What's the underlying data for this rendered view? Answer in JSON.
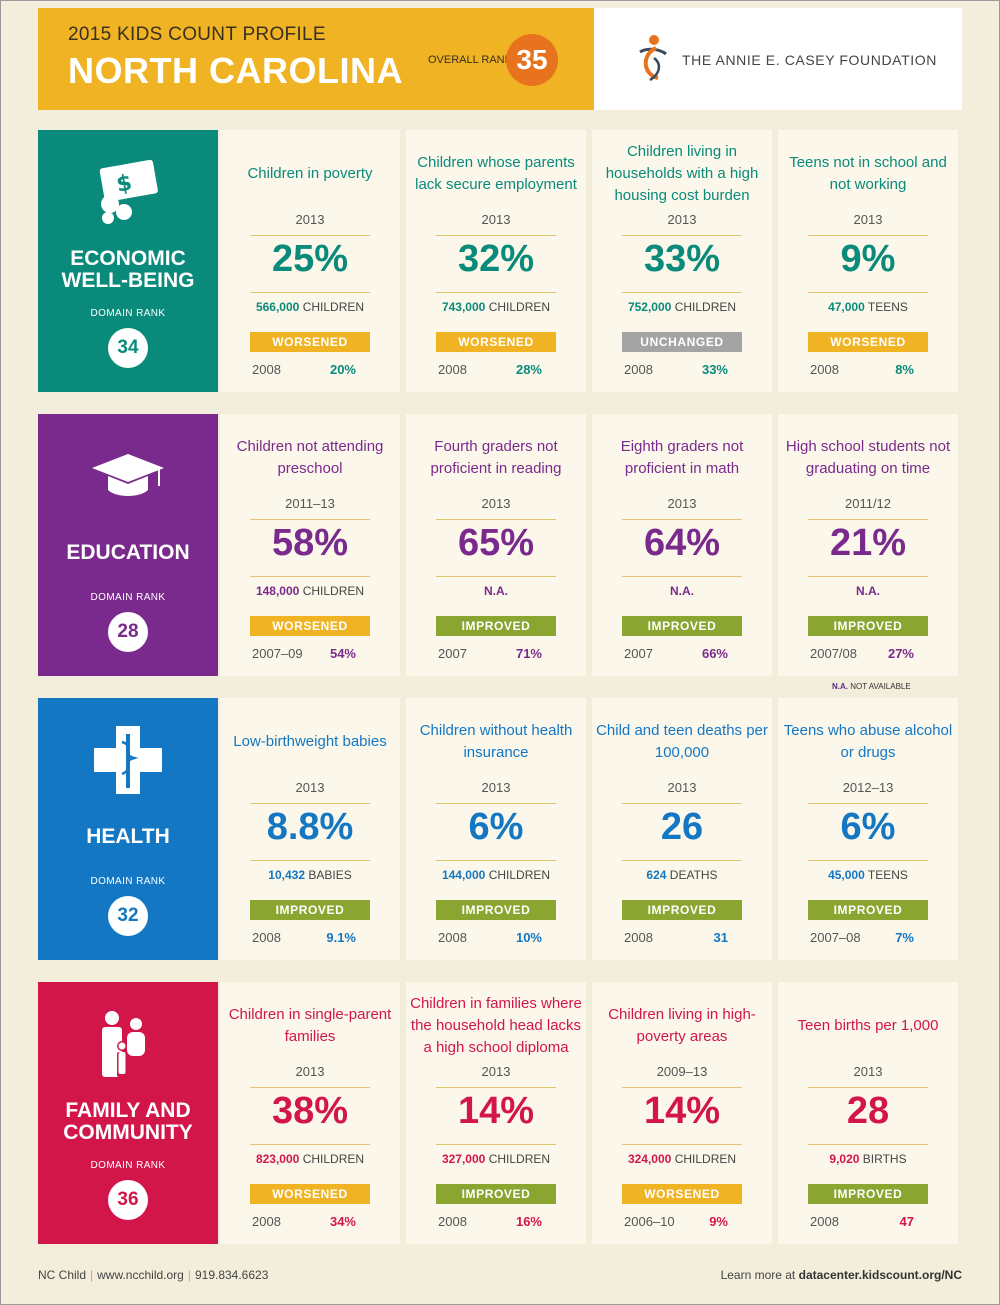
{
  "header": {
    "profile_label": "2015 KIDS COUNT PROFILE",
    "state": "NORTH CAROLINA",
    "overall_rank_label": "OVERALL RANK",
    "overall_rank": "35",
    "foundation": "THE ANNIE E. CASEY FOUNDATION"
  },
  "colors": {
    "economic": "#0a8a7a",
    "education": "#7a2a8c",
    "health": "#1477c4",
    "family": "#d2164a",
    "worsened": "#f0b323",
    "improved": "#8aa631",
    "unchanged": "#a4a4a4",
    "header_yellow": "#f0b323",
    "rank_orange": "#e8731f"
  },
  "domains": [
    {
      "title1": "ECONOMIC",
      "title2": "WELL-BEING",
      "rank_label": "DOMAIN RANK",
      "rank": "34",
      "icon": "money-icon",
      "indicators": [
        {
          "title": "Children in poverty",
          "year": "2013",
          "value": "25%",
          "count": "566,000",
          "unit": "CHILDREN",
          "trend": "WORSENED",
          "base_year": "2008",
          "base_value": "20%"
        },
        {
          "title": "Children whose parents lack secure employment",
          "year": "2013",
          "value": "32%",
          "count": "743,000",
          "unit": "CHILDREN",
          "trend": "WORSENED",
          "base_year": "2008",
          "base_value": "28%"
        },
        {
          "title": "Children living in households with a high housing cost burden",
          "year": "2013",
          "value": "33%",
          "count": "752,000",
          "unit": "CHILDREN",
          "trend": "UNCHANGED",
          "base_year": "2008",
          "base_value": "33%"
        },
        {
          "title": "Teens not in school and not working",
          "year": "2013",
          "value": "9%",
          "count": "47,000",
          "unit": "TEENS",
          "trend": "WORSENED",
          "base_year": "2008",
          "base_value": "8%"
        }
      ]
    },
    {
      "title1": "EDUCATION",
      "title2": "",
      "rank_label": "DOMAIN RANK",
      "rank": "28",
      "icon": "graduation-cap-icon",
      "indicators": [
        {
          "title": "Children not attending preschool",
          "year": "2011–13",
          "value": "58%",
          "count": "148,000",
          "unit": "CHILDREN",
          "trend": "WORSENED",
          "base_year": "2007–09",
          "base_value": "54%"
        },
        {
          "title": "Fourth graders not proficient in reading",
          "year": "2013",
          "value": "65%",
          "count": "N.A.",
          "unit": "",
          "trend": "IMPROVED",
          "base_year": "2007",
          "base_value": "71%"
        },
        {
          "title": "Eighth graders not proficient in math",
          "year": "2013",
          "value": "64%",
          "count": "N.A.",
          "unit": "",
          "trend": "IMPROVED",
          "base_year": "2007",
          "base_value": "66%"
        },
        {
          "title": "High school students not graduating on time",
          "year": "2011/12",
          "value": "21%",
          "count": "N.A.",
          "unit": "",
          "trend": "IMPROVED",
          "base_year": "2007/08",
          "base_value": "27%"
        }
      ]
    },
    {
      "title1": "HEALTH",
      "title2": "",
      "rank_label": "DOMAIN RANK",
      "rank": "32",
      "icon": "medical-cross-icon",
      "indicators": [
        {
          "title": "Low-birthweight babies",
          "year": "2013",
          "value": "8.8%",
          "count": "10,432",
          "unit": "BABIES",
          "trend": "IMPROVED",
          "base_year": "2008",
          "base_value": "9.1%"
        },
        {
          "title": "Children without health insurance",
          "year": "2013",
          "value": "6%",
          "count": "144,000",
          "unit": "CHILDREN",
          "trend": "IMPROVED",
          "base_year": "2008",
          "base_value": "10%"
        },
        {
          "title": "Child and teen deaths per 100,000",
          "year": "2013",
          "value": "26",
          "count": "624",
          "unit": "DEATHS",
          "trend": "IMPROVED",
          "base_year": "2008",
          "base_value": "31"
        },
        {
          "title": "Teens who abuse alcohol or drugs",
          "year": "2012–13",
          "value": "6%",
          "count": "45,000",
          "unit": "TEENS",
          "trend": "IMPROVED",
          "base_year": "2007–08",
          "base_value": "7%"
        }
      ]
    },
    {
      "title1": "FAMILY AND",
      "title2": "COMMUNITY",
      "rank_label": "DOMAIN RANK",
      "rank": "36",
      "icon": "family-icon",
      "indicators": [
        {
          "title": "Children in single-parent families",
          "year": "2013",
          "value": "38%",
          "count": "823,000",
          "unit": "CHILDREN",
          "trend": "WORSENED",
          "base_year": "2008",
          "base_value": "34%"
        },
        {
          "title": "Children in families where the household head lacks a high school diploma",
          "year": "2013",
          "value": "14%",
          "count": "327,000",
          "unit": "CHILDREN",
          "trend": "IMPROVED",
          "base_year": "2008",
          "base_value": "16%"
        },
        {
          "title": "Children living in high-poverty areas",
          "year": "2009–13",
          "value": "14%",
          "count": "324,000",
          "unit": "CHILDREN",
          "trend": "WORSENED",
          "base_year": "2006–10",
          "base_value": "9%"
        },
        {
          "title": "Teen births per 1,000",
          "year": "2013",
          "value": "28",
          "count": "9,020",
          "unit": "BIRTHS",
          "trend": "IMPROVED",
          "base_year": "2008",
          "base_value": "47"
        }
      ]
    }
  ],
  "na_note": {
    "abbr": "N.A.",
    "text": "NOT AVAILABLE"
  },
  "footer": {
    "org": "NC Child",
    "website": "www.ncchild.org",
    "phone": "919.834.6623",
    "learn_more": "Learn more at",
    "learn_url": "datacenter.kidscount.org/NC"
  }
}
